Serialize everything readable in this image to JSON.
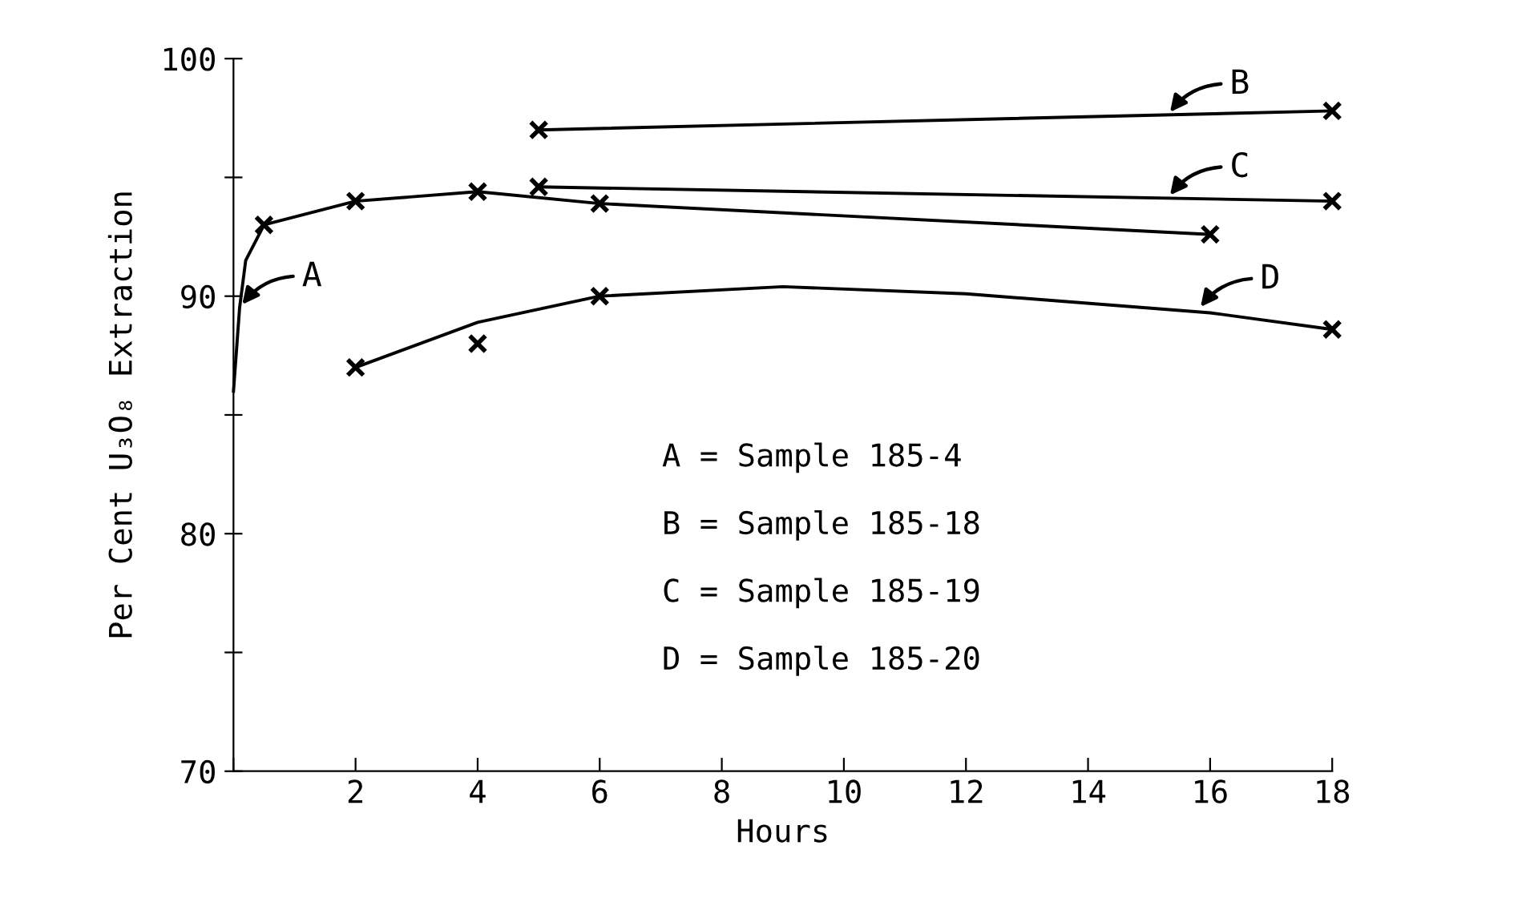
{
  "chart_data": {
    "type": "line",
    "xlabel": "Hours",
    "ylabel": "Per Cent U₃O₈ Extraction",
    "xlim": [
      0,
      18
    ],
    "ylim": [
      70,
      100
    ],
    "xticks": [
      {
        "value": 0,
        "label": null
      },
      2,
      4,
      6,
      8,
      10,
      12,
      14,
      16,
      18
    ],
    "yticks": [
      70,
      {
        "value": 75,
        "label": null
      },
      80,
      {
        "value": 85,
        "label": null
      },
      90,
      {
        "value": 95,
        "label": null
      },
      100
    ],
    "grid": false,
    "legend": false,
    "marker": "cross",
    "line_style": "solid",
    "series": [
      {
        "color": "#000000",
        "x": [
          0.5,
          2,
          4,
          6,
          16
        ],
        "values": [
          93,
          94,
          94.4,
          93.9,
          92.6
        ]
      },
      {
        "color": "#000000",
        "marker": "none",
        "x": [
          0,
          0.1,
          0.2,
          0.5
        ],
        "values": [
          86,
          89.5,
          91.5,
          93
        ]
      },
      {
        "color": "#000000",
        "x": [
          5,
          18
        ],
        "values": [
          97,
          97.8
        ]
      },
      {
        "color": "#000000",
        "x": [
          5,
          18
        ],
        "values": [
          94.6,
          94
        ]
      },
      {
        "color": "#000000",
        "type": "scatter",
        "x": [
          2,
          4,
          6,
          18
        ],
        "values": [
          87,
          88,
          90,
          88.6
        ]
      },
      {
        "color": "#000000",
        "marker": "none",
        "x": [
          2,
          4,
          6,
          9,
          12,
          16,
          18
        ],
        "values": [
          87,
          88.9,
          90,
          90.4,
          90.1,
          89.3,
          88.6
        ]
      }
    ],
    "annotations": [
      {
        "text": "A",
        "x": 0.1,
        "y": 89.5
      },
      {
        "text": "B",
        "x": 15.3,
        "y": 97.6
      },
      {
        "text": "C",
        "x": 15.3,
        "y": 94.1
      },
      {
        "text": "D",
        "x": 15.8,
        "y": 89.4
      },
      "A = Sample 185-4",
      "B = Sample 185-18",
      "C = Sample 185-19",
      "D = Sample 185-20"
    ]
  }
}
